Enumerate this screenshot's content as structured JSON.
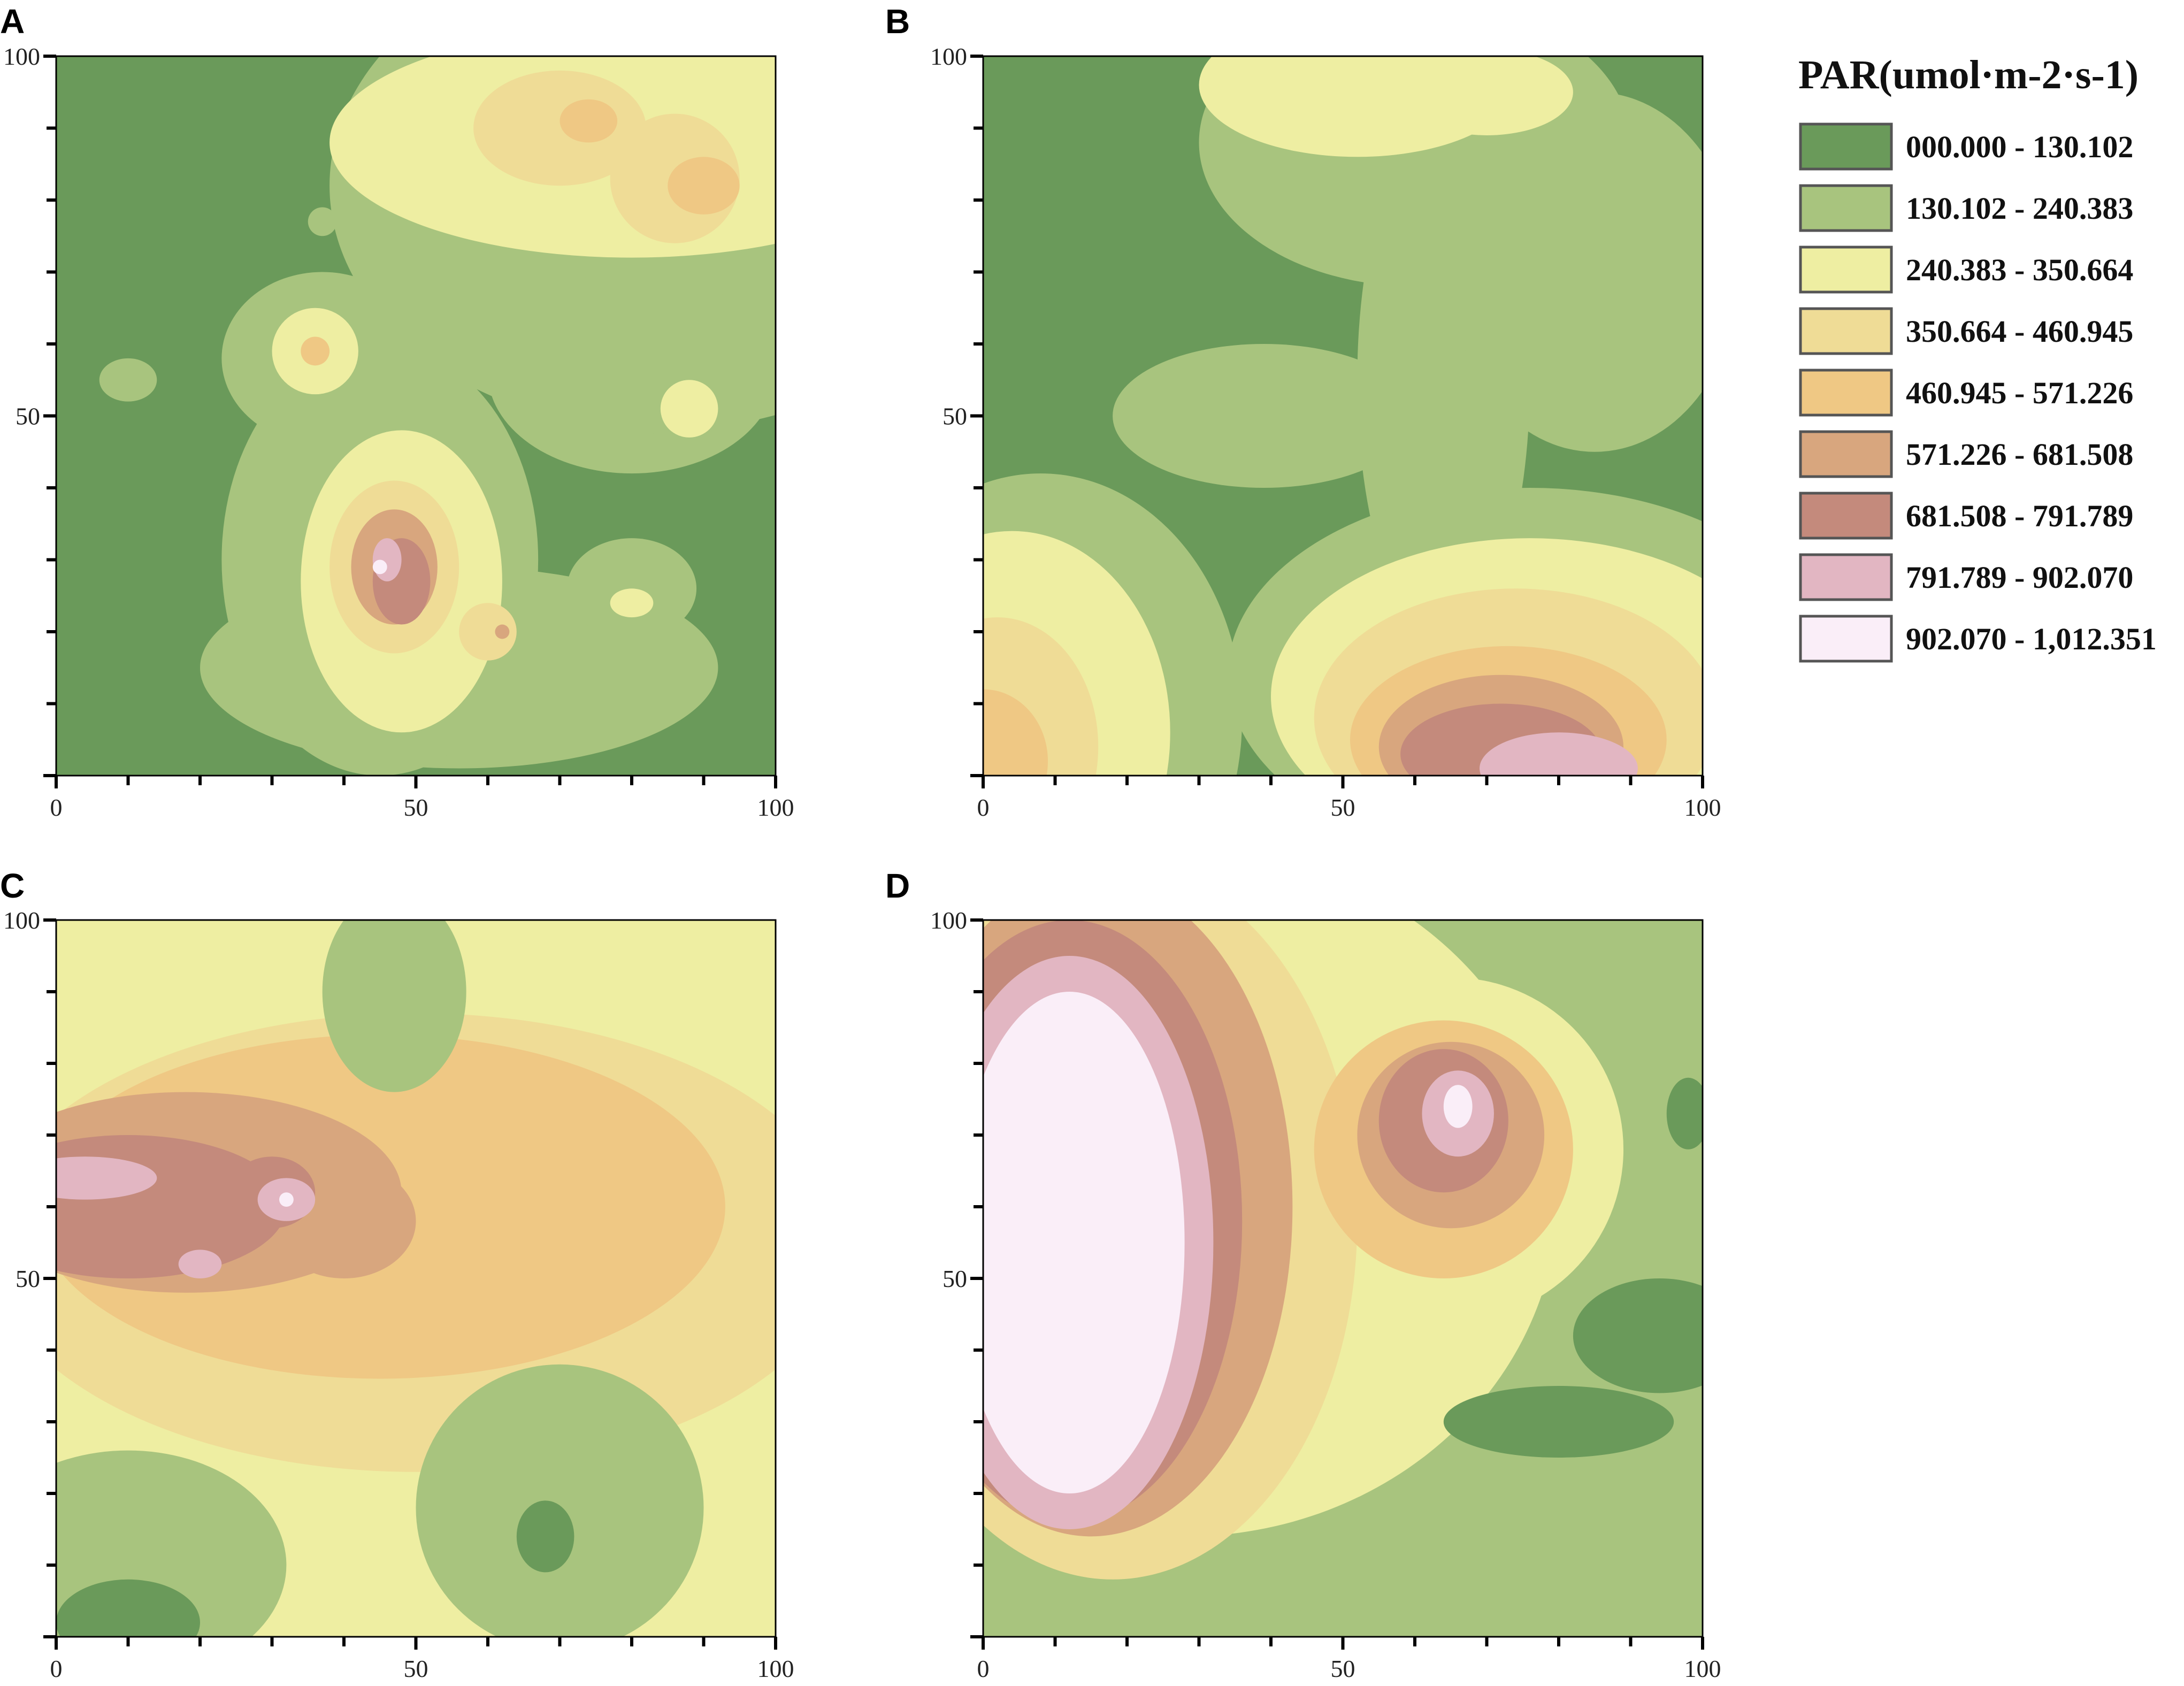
{
  "colors": {
    "c0": "#6a9a5a",
    "c1": "#a8c47e",
    "c2": "#eeeea2",
    "c3": "#efdc96",
    "c4": "#efc884",
    "c5": "#d8a67e",
    "c6": "#c48a7c",
    "c7": "#e2b6c2",
    "c8": "#faeef8"
  },
  "legend": {
    "title": "PAR(umol·m-2·s-1)",
    "items": [
      {
        "label": "000.000 - 130.102",
        "color": "#6a9a5a"
      },
      {
        "label": "130.102 - 240.383",
        "color": "#a8c47e"
      },
      {
        "label": "240.383 - 350.664",
        "color": "#eeeea2"
      },
      {
        "label": "350.664 - 460.945",
        "color": "#efdc96"
      },
      {
        "label": "460.945 - 571.226",
        "color": "#efc884"
      },
      {
        "label": "571.226 - 681.508",
        "color": "#d8a67e"
      },
      {
        "label": "681.508 - 791.789",
        "color": "#c48a7c"
      },
      {
        "label": "791.789 - 902.070",
        "color": "#e2b6c2"
      },
      {
        "label": "902.070 - 1,012.351",
        "color": "#faeef8"
      }
    ]
  },
  "chart_data": [
    {
      "type": "heatmap",
      "panel": "A",
      "xlim": [
        0,
        100
      ],
      "ylim": [
        0,
        100
      ],
      "x_ticks": [
        "0",
        "50",
        "100"
      ],
      "y_ticks": [
        "50",
        "100"
      ],
      "base_class": 0,
      "regions": [
        {
          "cx": 84,
          "cy": 82,
          "rx": 46,
          "ry": 34,
          "cls": 1
        },
        {
          "cx": 80,
          "cy": 56,
          "rx": 20,
          "ry": 14,
          "cls": 1
        },
        {
          "cx": 56,
          "cy": 15,
          "rx": 36,
          "ry": 14,
          "cls": 1
        },
        {
          "cx": 45,
          "cy": 30,
          "rx": 22,
          "ry": 30,
          "cls": 1
        },
        {
          "cx": 37,
          "cy": 58,
          "rx": 14,
          "ry": 12,
          "cls": 1
        },
        {
          "cx": 88,
          "cy": 53,
          "rx": 8,
          "ry": 7,
          "cls": 1
        },
        {
          "cx": 80,
          "cy": 26,
          "rx": 9,
          "ry": 7,
          "cls": 1
        },
        {
          "cx": 10,
          "cy": 55,
          "rx": 4,
          "ry": 3,
          "cls": 1
        },
        {
          "cx": 37,
          "cy": 77,
          "rx": 2,
          "ry": 2,
          "cls": 1
        },
        {
          "cx": 80,
          "cy": 88,
          "rx": 42,
          "ry": 16,
          "cls": 2
        },
        {
          "cx": 48,
          "cy": 27,
          "rx": 14,
          "ry": 21,
          "cls": 2
        },
        {
          "cx": 36,
          "cy": 59,
          "rx": 6,
          "ry": 6,
          "cls": 2
        },
        {
          "cx": 88,
          "cy": 51,
          "rx": 4,
          "ry": 4,
          "cls": 2
        },
        {
          "cx": 80,
          "cy": 24,
          "rx": 3,
          "ry": 2,
          "cls": 2
        },
        {
          "cx": 86,
          "cy": 83,
          "rx": 9,
          "ry": 9,
          "cls": 3
        },
        {
          "cx": 70,
          "cy": 90,
          "rx": 12,
          "ry": 8,
          "cls": 3
        },
        {
          "cx": 47,
          "cy": 29,
          "rx": 9,
          "ry": 12,
          "cls": 3
        },
        {
          "cx": 60,
          "cy": 20,
          "rx": 4,
          "ry": 4,
          "cls": 3
        },
        {
          "cx": 90,
          "cy": 82,
          "rx": 5,
          "ry": 4,
          "cls": 4
        },
        {
          "cx": 74,
          "cy": 91,
          "rx": 4,
          "ry": 3,
          "cls": 4
        },
        {
          "cx": 36,
          "cy": 59,
          "rx": 2,
          "ry": 2,
          "cls": 4
        },
        {
          "cx": 47,
          "cy": 29,
          "rx": 6,
          "ry": 8,
          "cls": 5
        },
        {
          "cx": 62,
          "cy": 20,
          "rx": 1,
          "ry": 1,
          "cls": 5
        },
        {
          "cx": 48,
          "cy": 27,
          "rx": 4,
          "ry": 6,
          "cls": 6
        },
        {
          "cx": 46,
          "cy": 30,
          "rx": 2,
          "ry": 3,
          "cls": 7
        },
        {
          "cx": 45,
          "cy": 29,
          "rx": 1,
          "ry": 1,
          "cls": 8
        }
      ]
    },
    {
      "type": "heatmap",
      "panel": "B",
      "xlim": [
        0,
        100
      ],
      "ylim": [
        0,
        100
      ],
      "x_ticks": [
        "0",
        "50",
        "100"
      ],
      "y_ticks": [
        "50",
        "100"
      ],
      "base_class": 0,
      "regions": [
        {
          "cx": 60,
          "cy": 88,
          "rx": 30,
          "ry": 20,
          "cls": 1
        },
        {
          "cx": 64,
          "cy": 55,
          "rx": 12,
          "ry": 36,
          "cls": 1
        },
        {
          "cx": 39,
          "cy": 50,
          "rx": 21,
          "ry": 10,
          "cls": 1
        },
        {
          "cx": 8,
          "cy": 8,
          "rx": 28,
          "ry": 34,
          "cls": 1
        },
        {
          "cx": 76,
          "cy": 14,
          "rx": 42,
          "ry": 26,
          "cls": 1
        },
        {
          "cx": 85,
          "cy": 70,
          "rx": 20,
          "ry": 25,
          "cls": 1
        },
        {
          "cx": 52,
          "cy": 96,
          "rx": 22,
          "ry": 10,
          "cls": 2
        },
        {
          "cx": 70,
          "cy": 95,
          "rx": 12,
          "ry": 6,
          "cls": 2
        },
        {
          "cx": 4,
          "cy": 6,
          "rx": 22,
          "ry": 28,
          "cls": 2
        },
        {
          "cx": 76,
          "cy": 11,
          "rx": 36,
          "ry": 22,
          "cls": 2
        },
        {
          "cx": 2,
          "cy": 4,
          "rx": 14,
          "ry": 18,
          "cls": 3
        },
        {
          "cx": 74,
          "cy": 8,
          "rx": 28,
          "ry": 18,
          "cls": 3
        },
        {
          "cx": 0,
          "cy": 2,
          "rx": 9,
          "ry": 10,
          "cls": 4
        },
        {
          "cx": 73,
          "cy": 5,
          "rx": 22,
          "ry": 13,
          "cls": 4
        },
        {
          "cx": 72,
          "cy": 4,
          "rx": 17,
          "ry": 10,
          "cls": 5
        },
        {
          "cx": 72,
          "cy": 3,
          "rx": 14,
          "ry": 7,
          "cls": 6
        },
        {
          "cx": 80,
          "cy": 1,
          "rx": 11,
          "ry": 5,
          "cls": 7
        }
      ]
    },
    {
      "type": "heatmap",
      "panel": "C",
      "xlim": [
        0,
        100
      ],
      "ylim": [
        0,
        100
      ],
      "x_ticks": [
        "0",
        "50",
        "100"
      ],
      "y_ticks": [
        "50",
        "100"
      ],
      "base_class": 2,
      "regions": [
        {
          "cx": 50,
          "cy": 55,
          "rx": 60,
          "ry": 32,
          "cls": 3
        },
        {
          "cx": 45,
          "cy": 60,
          "rx": 48,
          "ry": 24,
          "cls": 4
        },
        {
          "cx": 18,
          "cy": 62,
          "rx": 30,
          "ry": 14,
          "cls": 5
        },
        {
          "cx": 40,
          "cy": 58,
          "rx": 10,
          "ry": 8,
          "cls": 5
        },
        {
          "cx": 10,
          "cy": 60,
          "rx": 22,
          "ry": 10,
          "cls": 6
        },
        {
          "cx": 30,
          "cy": 62,
          "rx": 6,
          "ry": 5,
          "cls": 6
        },
        {
          "cx": 4,
          "cy": 64,
          "rx": 10,
          "ry": 3,
          "cls": 7
        },
        {
          "cx": 32,
          "cy": 61,
          "rx": 4,
          "ry": 3,
          "cls": 7
        },
        {
          "cx": 20,
          "cy": 52,
          "rx": 3,
          "ry": 2,
          "cls": 7
        },
        {
          "cx": 32,
          "cy": 61,
          "rx": 1,
          "ry": 1,
          "cls": 8
        },
        {
          "cx": 47,
          "cy": 90,
          "rx": 10,
          "ry": 14,
          "cls": 1
        },
        {
          "cx": 70,
          "cy": 18,
          "rx": 20,
          "ry": 20,
          "cls": 1
        },
        {
          "cx": 10,
          "cy": 10,
          "rx": 22,
          "ry": 16,
          "cls": 1
        },
        {
          "cx": 10,
          "cy": 2,
          "rx": 10,
          "ry": 6,
          "cls": 0
        },
        {
          "cx": 68,
          "cy": 14,
          "rx": 4,
          "ry": 5,
          "cls": 0
        }
      ]
    },
    {
      "type": "heatmap",
      "panel": "D",
      "xlim": [
        0,
        100
      ],
      "ylim": [
        0,
        100
      ],
      "x_ticks": [
        "0",
        "50",
        "100"
      ],
      "y_ticks": [
        "50",
        "100"
      ],
      "base_class": 1,
      "regions": [
        {
          "cx": 28,
          "cy": 62,
          "rx": 52,
          "ry": 48,
          "cls": 2
        },
        {
          "cx": 65,
          "cy": 68,
          "rx": 24,
          "ry": 24,
          "cls": 2
        },
        {
          "cx": 18,
          "cy": 58,
          "rx": 34,
          "ry": 50,
          "cls": 3
        },
        {
          "cx": 64,
          "cy": 68,
          "rx": 18,
          "ry": 18,
          "cls": 4
        },
        {
          "cx": 15,
          "cy": 60,
          "rx": 28,
          "ry": 46,
          "cls": 5
        },
        {
          "cx": 65,
          "cy": 70,
          "rx": 13,
          "ry": 13,
          "cls": 5
        },
        {
          "cx": 12,
          "cy": 58,
          "rx": 24,
          "ry": 42,
          "cls": 6
        },
        {
          "cx": 64,
          "cy": 72,
          "rx": 9,
          "ry": 10,
          "cls": 6
        },
        {
          "cx": 12,
          "cy": 55,
          "rx": 20,
          "ry": 40,
          "cls": 7
        },
        {
          "cx": 66,
          "cy": 73,
          "rx": 5,
          "ry": 6,
          "cls": 7
        },
        {
          "cx": 12,
          "cy": 55,
          "rx": 16,
          "ry": 35,
          "cls": 8
        },
        {
          "cx": 66,
          "cy": 74,
          "rx": 2,
          "ry": 3,
          "cls": 8
        },
        {
          "cx": 94,
          "cy": 42,
          "rx": 12,
          "ry": 8,
          "cls": 0
        },
        {
          "cx": 80,
          "cy": 30,
          "rx": 16,
          "ry": 5,
          "cls": 0
        },
        {
          "cx": 98,
          "cy": 73,
          "rx": 3,
          "ry": 5,
          "cls": 0
        }
      ]
    }
  ]
}
